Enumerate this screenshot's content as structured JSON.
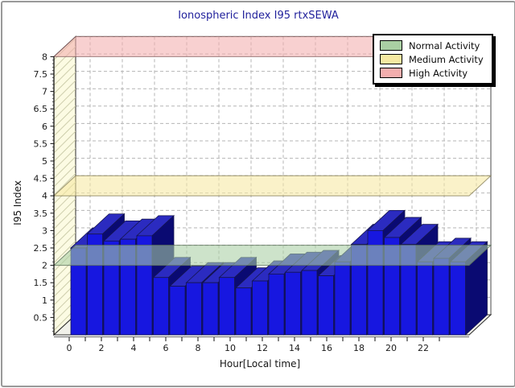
{
  "title": "Ionospheric Index I95 rtxSEWA",
  "axes": {
    "x_label": "Hour[Local time]",
    "y_label": "I95 Index"
  },
  "legend": {
    "items": [
      {
        "label": "Normal Activity",
        "color": "#A9CFA3"
      },
      {
        "label": "Medium Activity",
        "color": "#F6E9A2"
      },
      {
        "label": "High Activity",
        "color": "#F3AEAE"
      }
    ]
  },
  "chart_data": {
    "type": "bar",
    "projection": "3d",
    "title": "Ionospheric Index I95 rtxSEWA",
    "xlabel": "Hour[Local time]",
    "ylabel": "I95 Index",
    "x": [
      0,
      1,
      2,
      3,
      4,
      5,
      6,
      7,
      8,
      9,
      10,
      11,
      12,
      13,
      14,
      15,
      16,
      17,
      18,
      19,
      20,
      21,
      22,
      23
    ],
    "values": [
      2.5,
      2.9,
      2.7,
      2.75,
      2.85,
      1.65,
      1.4,
      1.5,
      1.5,
      1.65,
      1.35,
      1.55,
      1.75,
      1.8,
      1.85,
      1.7,
      2.1,
      2.6,
      3.0,
      2.8,
      2.6,
      2.1,
      2.2,
      2.1
    ],
    "ylim": [
      0,
      8
    ],
    "ytick_step": 0.5,
    "xtick_labels": [
      0,
      2,
      4,
      6,
      8,
      10,
      12,
      14,
      16,
      18,
      20,
      22
    ],
    "grid": true,
    "legend_position": "top-right",
    "bar_colors": {
      "front": "#1717E0",
      "top": "#2B2BC0",
      "side": "#0A0A72",
      "edge": "#15154E"
    },
    "bands": [
      {
        "label": "Normal Activity",
        "value": 2,
        "color": "#A9CFA3"
      },
      {
        "label": "Medium Activity",
        "value": 4,
        "color": "#F6E9A2"
      },
      {
        "label": "High Activity",
        "value": 8,
        "color": "#F3AEAE"
      }
    ],
    "wall_color": "#FCFBE3",
    "floor_color": "#F1F1EA",
    "title_color": "#21219C"
  }
}
